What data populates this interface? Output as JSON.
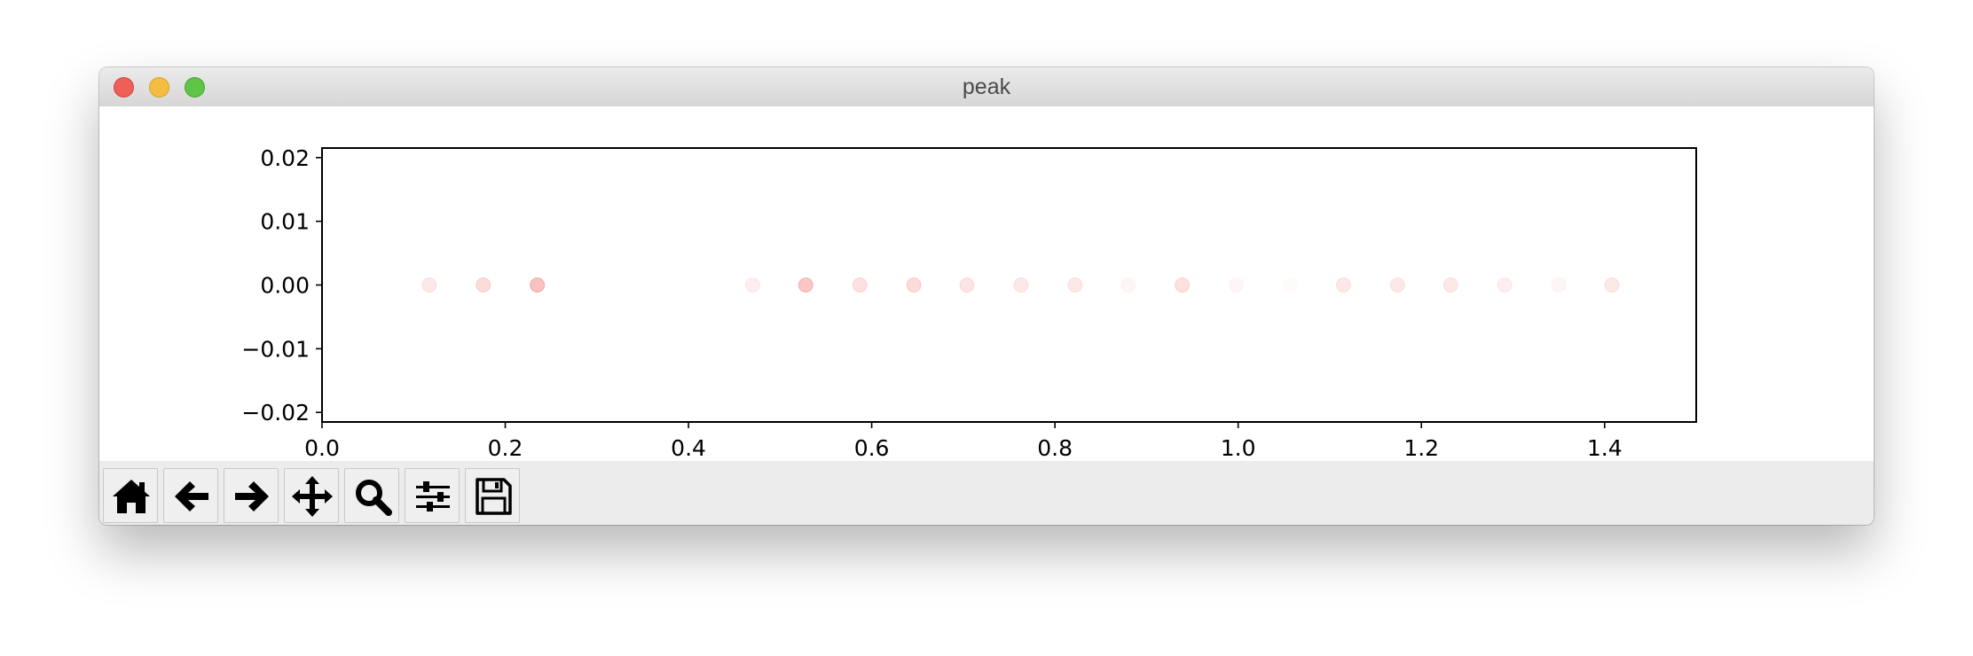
{
  "window": {
    "title": "peak"
  },
  "toolbar": {
    "buttons": [
      {
        "name": "home",
        "icon": "home-icon"
      },
      {
        "name": "back",
        "icon": "arrow-left-icon"
      },
      {
        "name": "forward",
        "icon": "arrow-right-icon"
      },
      {
        "name": "pan",
        "icon": "move-icon"
      },
      {
        "name": "zoom",
        "icon": "search-icon"
      },
      {
        "name": "configure-subplots",
        "icon": "sliders-icon"
      },
      {
        "name": "save",
        "icon": "save-icon"
      }
    ]
  },
  "colors": {
    "marker": "#ee2222",
    "axes": "#000000",
    "toolbar_bg": "#ececec"
  },
  "chart_data": {
    "type": "scatter",
    "title": "",
    "xlabel": "",
    "ylabel": "",
    "xlim": [
      0.0,
      1.5
    ],
    "ylim": [
      -0.0215,
      0.0215
    ],
    "xticks": [
      "0.0",
      "0.2",
      "0.4",
      "0.6",
      "0.8",
      "1.0",
      "1.2",
      "1.4"
    ],
    "yticks": [
      "0.02",
      "0.01",
      "0.00",
      "−0.01",
      "−0.02"
    ],
    "grid": false,
    "series": [
      {
        "points": [
          {
            "x": 0.117,
            "y": 0.0,
            "alpha": 0.1
          },
          {
            "x": 0.176,
            "y": 0.0,
            "alpha": 0.16
          },
          {
            "x": 0.235,
            "y": 0.0,
            "alpha": 0.28
          },
          {
            "x": 0.47,
            "y": 0.0,
            "alpha": 0.08
          },
          {
            "x": 0.528,
            "y": 0.0,
            "alpha": 0.26
          },
          {
            "x": 0.587,
            "y": 0.0,
            "alpha": 0.14
          },
          {
            "x": 0.646,
            "y": 0.0,
            "alpha": 0.16
          },
          {
            "x": 0.704,
            "y": 0.0,
            "alpha": 0.12
          },
          {
            "x": 0.763,
            "y": 0.0,
            "alpha": 0.1
          },
          {
            "x": 0.822,
            "y": 0.0,
            "alpha": 0.1
          },
          {
            "x": 0.88,
            "y": 0.0,
            "alpha": 0.04
          },
          {
            "x": 0.939,
            "y": 0.0,
            "alpha": 0.14
          },
          {
            "x": 0.998,
            "y": 0.0,
            "alpha": 0.04
          },
          {
            "x": 1.057,
            "y": 0.0,
            "alpha": 0.02
          },
          {
            "x": 1.115,
            "y": 0.0,
            "alpha": 0.1
          },
          {
            "x": 1.174,
            "y": 0.0,
            "alpha": 0.1
          },
          {
            "x": 1.232,
            "y": 0.0,
            "alpha": 0.1
          },
          {
            "x": 1.291,
            "y": 0.0,
            "alpha": 0.08
          },
          {
            "x": 1.35,
            "y": 0.0,
            "alpha": 0.04
          },
          {
            "x": 1.408,
            "y": 0.0,
            "alpha": 0.1
          }
        ]
      }
    ]
  }
}
